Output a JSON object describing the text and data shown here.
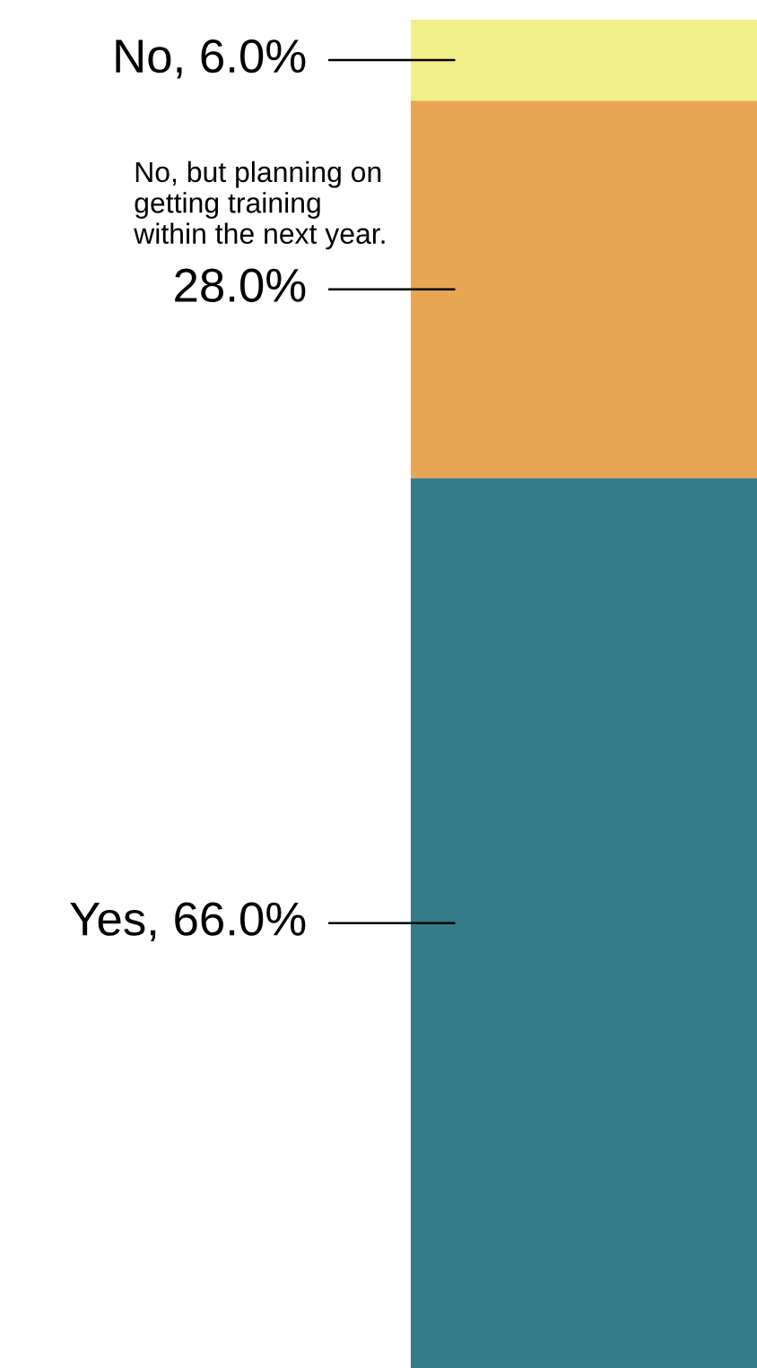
{
  "chart_data": {
    "type": "bar",
    "stacked": true,
    "categories": [
      null
    ],
    "ylim": [
      0,
      100
    ],
    "series": [
      {
        "name": "Yes,",
        "color": "#367a87",
        "values": [
          66.0
        ],
        "value_labels": [
          "66.0%"
        ]
      },
      {
        "name": "No, but planning on\ngetting training\nwithin the next year.",
        "color": "#e8a553",
        "values": [
          28.0
        ],
        "value_labels": [
          "28.0%"
        ]
      },
      {
        "name": "No,",
        "color": "#f2ef8a",
        "values": [
          6.0
        ],
        "value_labels": [
          "6.0%"
        ]
      }
    ]
  }
}
